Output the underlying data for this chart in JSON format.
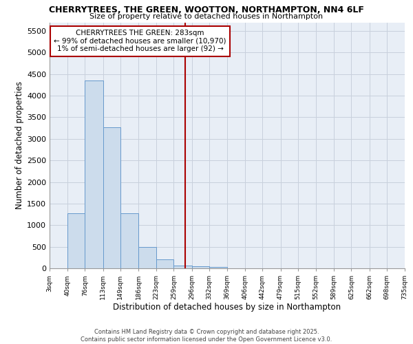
{
  "title": "CHERRYTREES, THE GREEN, WOOTTON, NORTHAMPTON, NN4 6LF",
  "subtitle": "Size of property relative to detached houses in Northampton",
  "xlabel": "Distribution of detached houses by size in Northampton",
  "ylabel": "Number of detached properties",
  "bar_color": "#ccdcec",
  "bar_edge_color": "#6699cc",
  "grid_color": "#c8d0dc",
  "background_color": "#e8eef6",
  "marker_value": 283,
  "marker_color": "#aa0000",
  "annotation_text": "CHERRYTREES THE GREEN: 283sqm\n← 99% of detached houses are smaller (10,970)\n1% of semi-detached houses are larger (92) →",
  "annotation_box_color": "#aa0000",
  "bin_edges": [
    3,
    40,
    76,
    113,
    149,
    186,
    223,
    259,
    296,
    332,
    369,
    406,
    442,
    479,
    515,
    552,
    589,
    625,
    662,
    698,
    735
  ],
  "bin_counts": [
    0,
    1270,
    4350,
    3270,
    1270,
    500,
    200,
    70,
    50,
    30,
    0,
    0,
    0,
    0,
    0,
    0,
    0,
    0,
    0,
    0
  ],
  "ylim": [
    0,
    5700
  ],
  "yticks": [
    0,
    500,
    1000,
    1500,
    2000,
    2500,
    3000,
    3500,
    4000,
    4500,
    5000,
    5500
  ],
  "footer_line1": "Contains HM Land Registry data © Crown copyright and database right 2025.",
  "footer_line2": "Contains public sector information licensed under the Open Government Licence v3.0.",
  "tick_labels": [
    "3sqm",
    "40sqm",
    "76sqm",
    "113sqm",
    "149sqm",
    "186sqm",
    "223sqm",
    "259sqm",
    "296sqm",
    "332sqm",
    "369sqm",
    "406sqm",
    "442sqm",
    "479sqm",
    "515sqm",
    "552sqm",
    "589sqm",
    "625sqm",
    "662sqm",
    "698sqm",
    "735sqm"
  ]
}
